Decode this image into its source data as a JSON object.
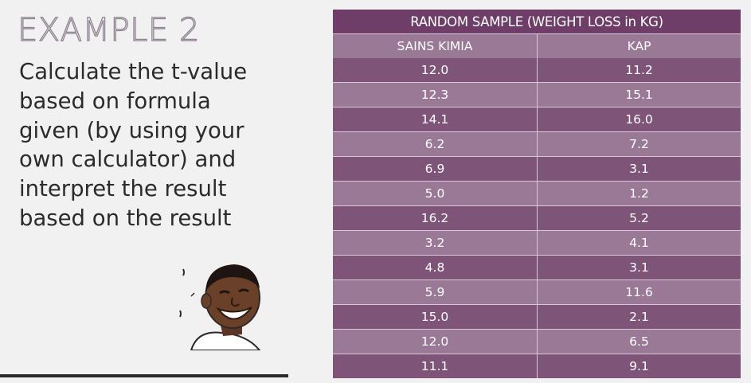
{
  "heading": "EXAMPLE 2",
  "instruction_lines": [
    "Calculate the t-value",
    "based on formula",
    "given (by using your",
    "own calculator) and",
    "interpret the result",
    "based on the result"
  ],
  "table": {
    "caption": "RANDOM SAMPLE (WEIGHT LOSS in KG)",
    "columns": [
      "SAINS KIMIA",
      "KAP"
    ],
    "rows": [
      [
        "12.0",
        "11.2"
      ],
      [
        "12.3",
        "15.1"
      ],
      [
        "14.1",
        "16.0"
      ],
      [
        "6.2",
        "7.2"
      ],
      [
        "6.9",
        "3.1"
      ],
      [
        "5.0",
        "1.2"
      ],
      [
        "16.2",
        "5.2"
      ],
      [
        "3.2",
        "4.1"
      ],
      [
        "4.8",
        "3.1"
      ],
      [
        "5.9",
        "11.6"
      ],
      [
        "15.0",
        "2.1"
      ],
      [
        "12.0",
        "6.5"
      ],
      [
        "11.1",
        "9.1"
      ]
    ]
  },
  "colors": {
    "header_bg": "#6e3e69",
    "row_dark": "#7f5479",
    "row_light": "#9a7996",
    "text_dark": "#2b2b2b"
  }
}
